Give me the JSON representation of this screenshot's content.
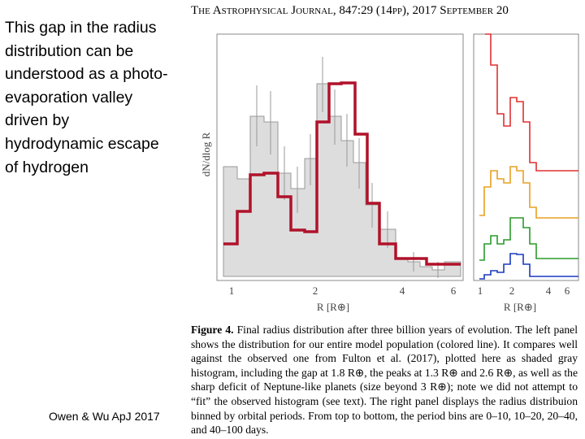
{
  "slide": {
    "text": "This gap in the radius distribution can be understood as a photo-evaporation valley driven by hydrodynamic escape of hydrogen",
    "citation": "Owen & Wu ApJ 2017"
  },
  "figure": {
    "header": "The Astrophysical Journal, 847:29 (14pp), 2017 September 20",
    "y_label": "dN/dlog R",
    "left_x_ticks": [
      "1",
      "2",
      "4",
      "6"
    ],
    "left_x_label": "R [R⊕]",
    "right_x_ticks": [
      "1",
      "2",
      "4",
      "6"
    ],
    "right_x_label": "R [R⊕]",
    "caption_label": "Figure 4.",
    "caption_text": "Final radius distribution after three billion years of evolution. The left panel shows the distribution for our entire model population (colored line). It compares well against the observed one from Fulton et al. (2017), plotted here as shaded gray histogram, including the gap at 1.8 R⊕, the peaks at 1.3 R⊕ and 2.6 R⊕, as well as the sharp deficit of Neptune-like planets (size beyond 3 R⊕); note we did not attempt to “fit” the observed histogram (see text). The right panel displays the radius distribuion binned by orbital periods. From top to bottom, the period bins are 0–10, 10–20, 20–40, and 40–100 days."
  }
}
